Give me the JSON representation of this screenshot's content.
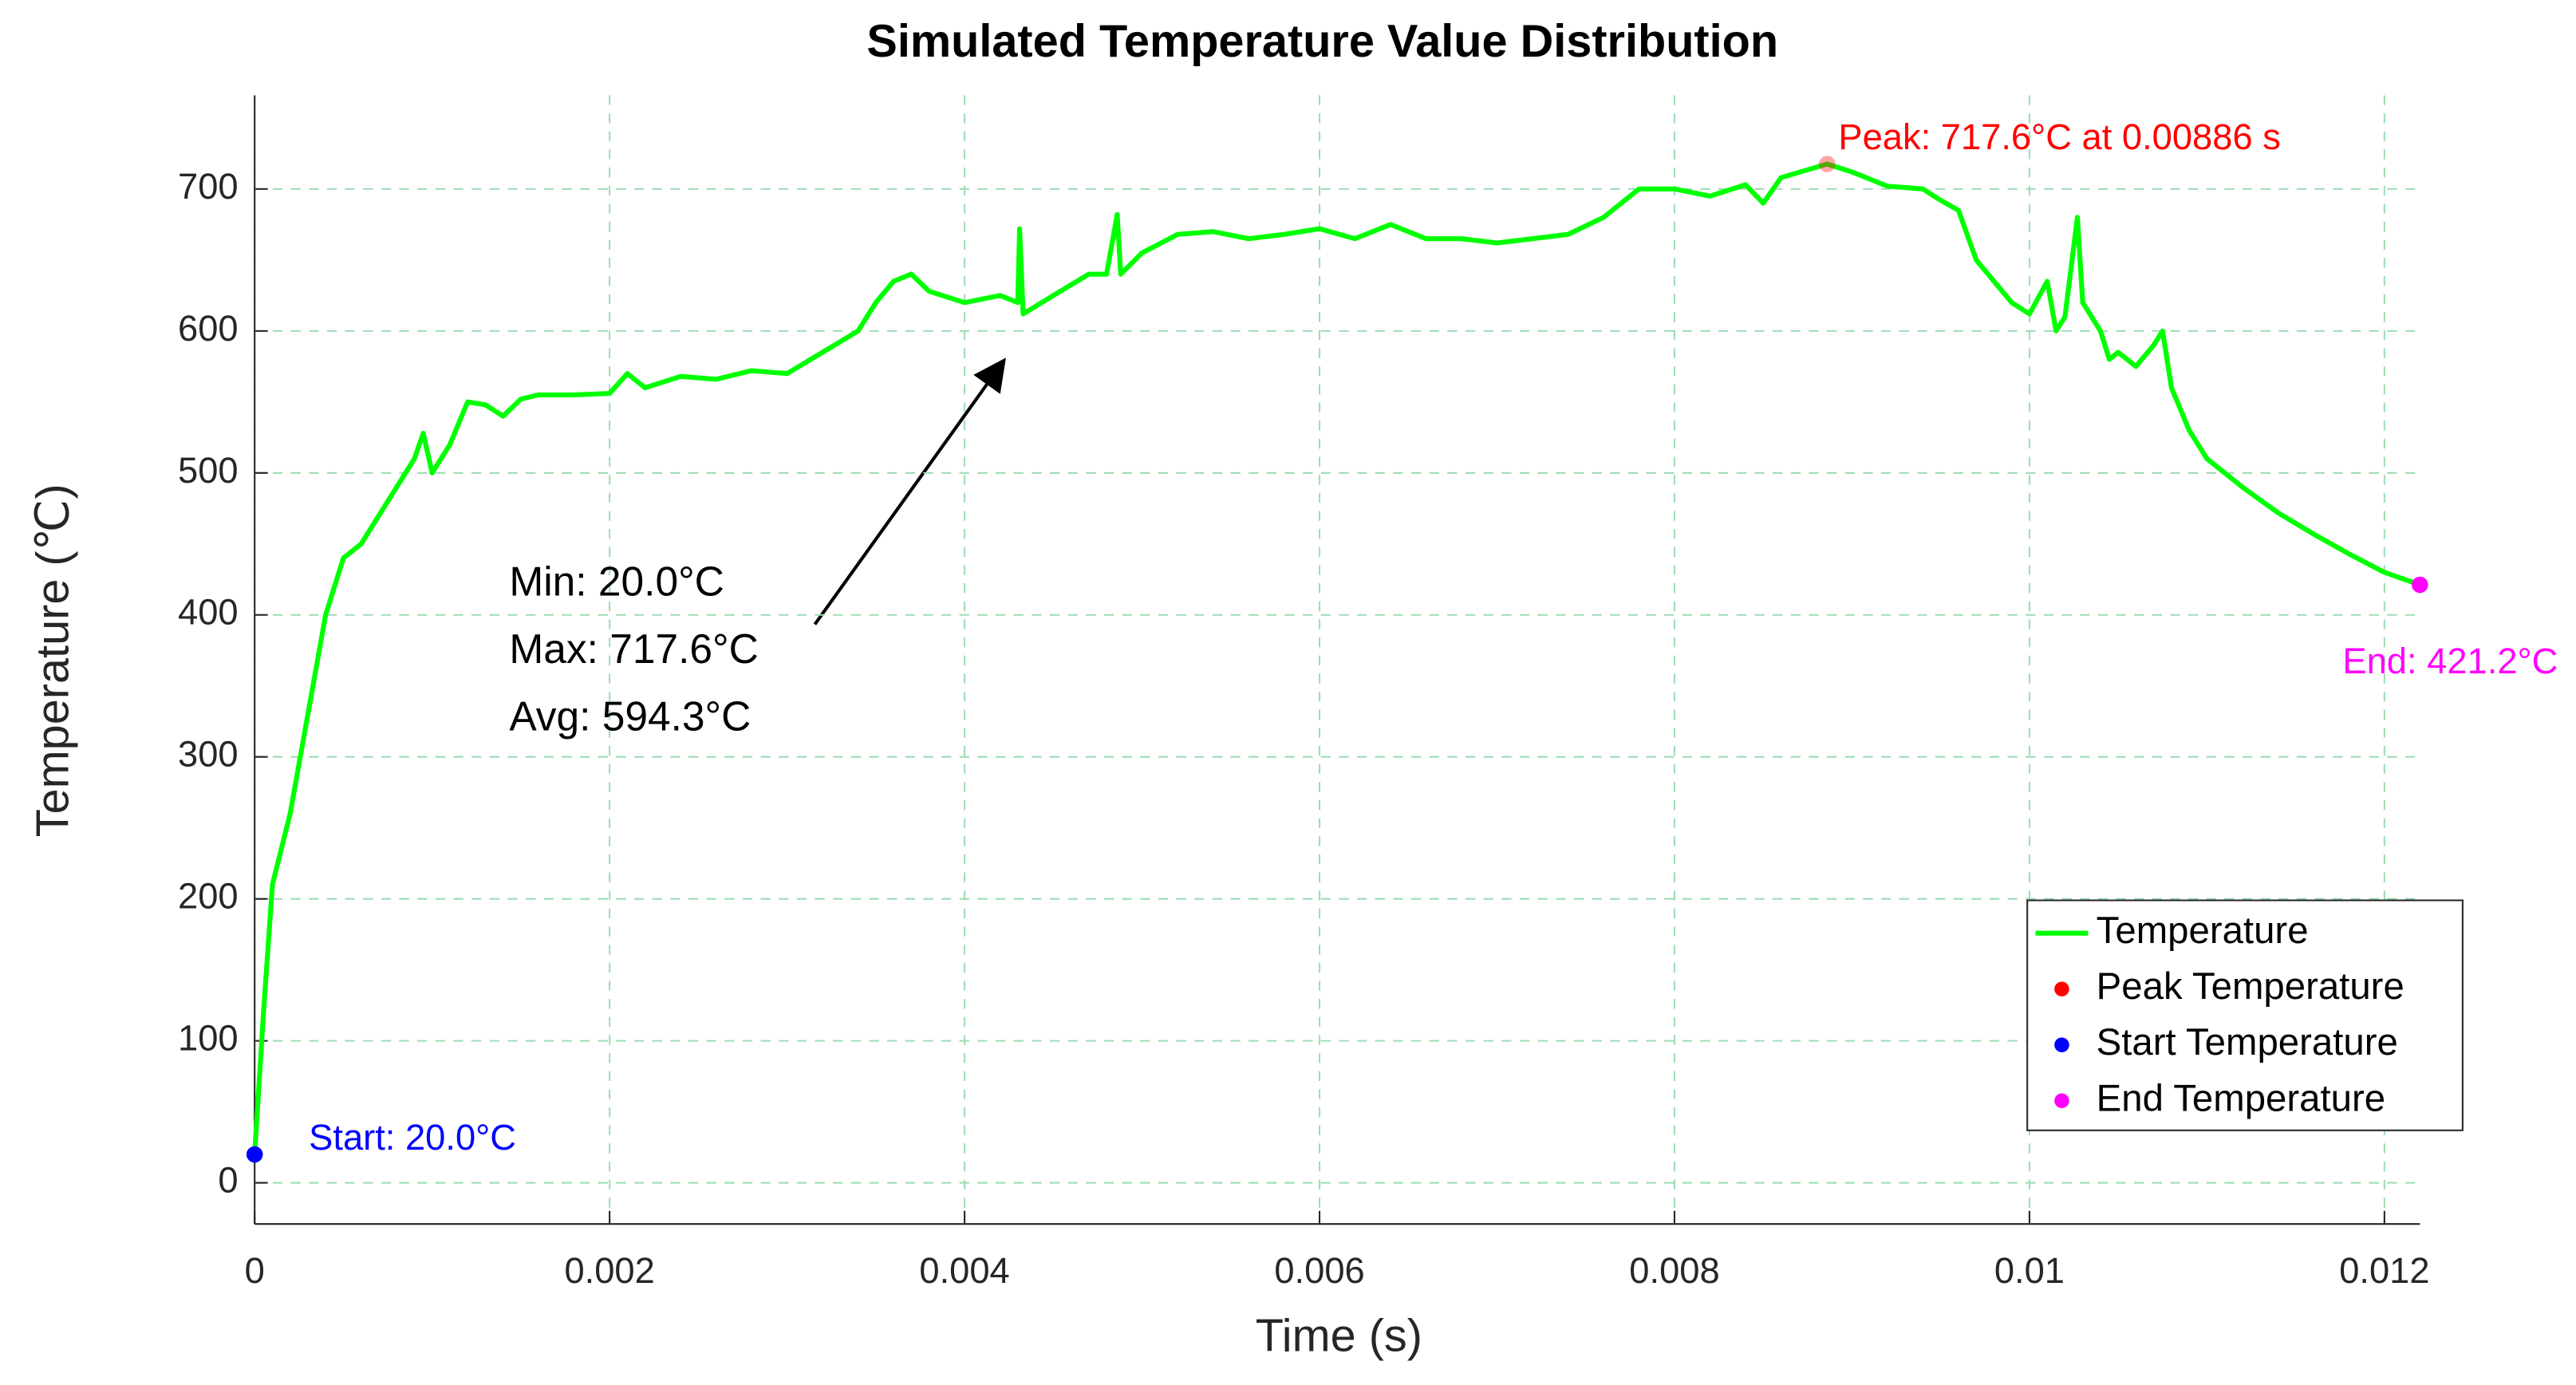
{
  "chart_data": {
    "type": "line",
    "title": "Simulated Temperature Value Distribution",
    "x_label": "Time (s)",
    "y_label": "Temperature (℃)",
    "x": [
      0,
      5e-05,
      0.0001,
      0.0002,
      0.0003,
      0.0004,
      0.0005,
      0.0006,
      0.0007,
      0.0008,
      0.0009,
      0.00095,
      0.001,
      0.0011,
      0.0012,
      0.0013,
      0.0014,
      0.0015,
      0.0016,
      0.0018,
      0.002,
      0.0021,
      0.0022,
      0.0024,
      0.0026,
      0.0028,
      0.003,
      0.0032,
      0.0034,
      0.0035,
      0.0036,
      0.0037,
      0.0038,
      0.004,
      0.0042,
      0.0043,
      0.00431,
      0.00433,
      0.0045,
      0.0047,
      0.0048,
      0.00486,
      0.00488,
      0.005,
      0.0052,
      0.0054,
      0.0056,
      0.0058,
      0.006,
      0.0062,
      0.0064,
      0.0066,
      0.0068,
      0.007,
      0.0074,
      0.0076,
      0.0078,
      0.008,
      0.0082,
      0.0084,
      0.0085,
      0.0086,
      0.00886,
      0.009,
      0.0092,
      0.0094,
      0.0095,
      0.0096,
      0.0097,
      0.0099,
      0.01,
      0.0101,
      0.01015,
      0.0102,
      0.01027,
      0.0103,
      0.0104,
      0.01045,
      0.0105,
      0.0106,
      0.0107,
      0.01075,
      0.0108,
      0.0109,
      0.011,
      0.0112,
      0.0114,
      0.0116,
      0.0118,
      0.012,
      0.0122
    ],
    "series": [
      {
        "name": "Temperature",
        "color": "#00ff00",
        "values": [
          20,
          120,
          210,
          260,
          330,
          400,
          440,
          450,
          470,
          490,
          510,
          528,
          500,
          520,
          550,
          548,
          540,
          552,
          555,
          555,
          556,
          570,
          560,
          568,
          566,
          572,
          570,
          585,
          600,
          620,
          635,
          640,
          628,
          620,
          625,
          620,
          672,
          612,
          625,
          640,
          640,
          682,
          640,
          655,
          668,
          670,
          665,
          668,
          672,
          665,
          675,
          665,
          665,
          662,
          668,
          680,
          700,
          700,
          695,
          703,
          690,
          708,
          717.6,
          712,
          702,
          700,
          692,
          685,
          650,
          620,
          612,
          635,
          600,
          610,
          680,
          620,
          600,
          580,
          585,
          575,
          590,
          600,
          560,
          530,
          510,
          490,
          472,
          457,
          443,
          430,
          421.2
        ]
      },
      {
        "name": "Peak Temperature",
        "type": "scatter",
        "color": "#ff0000",
        "x": [
          0.00886
        ],
        "values": [
          717.6
        ]
      },
      {
        "name": "Start Temperature",
        "type": "scatter",
        "color": "#0000ff",
        "x": [
          0
        ],
        "values": [
          20
        ]
      },
      {
        "name": "End Temperature",
        "type": "scatter",
        "color": "#ff00ff",
        "x": [
          0.0122
        ],
        "values": [
          421.2
        ]
      }
    ],
    "annotations": [
      {
        "text": "Peak: 717.6°C at 0.00886 s",
        "color": "#ff0000"
      },
      {
        "text": "Start: 20.0°C",
        "color": "#0000ff"
      },
      {
        "text": "End: 421.2°C",
        "color": "#ff00ff"
      }
    ],
    "stats": [
      "Min: 20.0°C",
      "Max: 717.6°C",
      "Avg: 594.3°C"
    ],
    "xlim": [
      0,
      0.0122
    ],
    "ylim": [
      -29,
      766
    ],
    "xticks": [
      0,
      0.002,
      0.004,
      0.006,
      0.008,
      0.01,
      0.012
    ],
    "yticks": [
      0,
      100,
      200,
      300,
      400,
      500,
      600,
      700
    ],
    "grid": true,
    "legend": "lower right"
  }
}
